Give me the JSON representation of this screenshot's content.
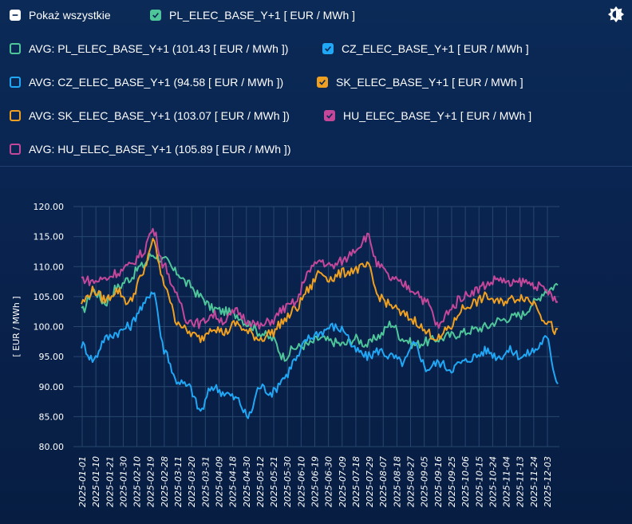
{
  "legend": {
    "show_all": "Pokaż wszystkie",
    "items": [
      {
        "label": "PL_ELEC_BASE_Y+1 [ EUR / MWh ]",
        "color": "#4fc69a",
        "checked": true
      },
      {
        "label": "AVG: PL_ELEC_BASE_Y+1 (101.43 [ EUR / MWh ])",
        "color": "#4fc69a",
        "checked": false
      },
      {
        "label": "CZ_ELEC_BASE_Y+1 [ EUR / MWh ]",
        "color": "#20a7f5",
        "checked": true
      },
      {
        "label": "AVG: CZ_ELEC_BASE_Y+1 (94.58 [ EUR / MWh ])",
        "color": "#20a7f5",
        "checked": false
      },
      {
        "label": "SK_ELEC_BASE_Y+1 [ EUR / MWh ]",
        "color": "#f0a020",
        "checked": true
      },
      {
        "label": "AVG: SK_ELEC_BASE_Y+1 (103.07 [ EUR / MWh ])",
        "color": "#f0a020",
        "checked": false
      },
      {
        "label": "HU_ELEC_BASE_Y+1 [ EUR / MWh ]",
        "color": "#c5479a",
        "checked": true
      },
      {
        "label": "AVG: HU_ELEC_BASE_Y+1 (105.89 [ EUR / MWh ])",
        "color": "#c5479a",
        "checked": false
      }
    ],
    "theme_icon": "brightness-icon"
  },
  "chart_data": {
    "type": "line",
    "ylabel": "[ EUR / MWh ]",
    "ylim": [
      80,
      120
    ],
    "y_ticks": [
      "80.00",
      "85.00",
      "90.00",
      "95.00",
      "100.00",
      "105.00",
      "110.00",
      "115.00",
      "120.00"
    ],
    "x_ticks": [
      "2025-01-01",
      "2025-01-10",
      "2025-01-21",
      "2025-01-30",
      "2025-02-10",
      "2025-02-19",
      "2025-02-28",
      "2025-03-11",
      "2025-03-20",
      "2025-03-31",
      "2025-04-09",
      "2025-04-18",
      "2025-04-30",
      "2025-05-12",
      "2025-05-21",
      "2025-05-30",
      "2025-06-10",
      "2025-06-19",
      "2025-06-30",
      "2025-07-09",
      "2025-07-18",
      "2025-07-29",
      "2025-08-07",
      "2025-08-18",
      "2025-08-27",
      "2025-09-05",
      "2025-09-16",
      "2025-09-25",
      "2025-10-06",
      "2025-10-15",
      "2025-10-24",
      "2025-11-04",
      "2025-11-13",
      "2025-11-24",
      "2025-12-03"
    ],
    "grid": true,
    "series": [
      {
        "name": "PL_ELEC_BASE_Y+1 [ EUR / MWh ]",
        "color": "#4fc69a",
        "values": [
          102.5,
          106,
          104,
          106.5,
          108,
          110,
          112,
          111,
          109,
          107,
          105,
          103,
          102.5,
          102,
          100.5,
          99,
          98,
          95,
          96.5,
          97,
          98,
          97.5,
          97,
          98,
          97,
          98.5,
          100.5,
          98,
          97,
          97.5,
          98,
          98.5,
          99,
          99.5,
          100,
          101,
          101.5,
          102,
          104,
          106,
          107
        ]
      },
      {
        "name": "CZ_ELEC_BASE_Y+1 [ EUR / MWh ]",
        "color": "#20a7f5",
        "values": [
          97,
          94.5,
          98,
          99,
          100,
          103,
          106,
          96,
          91,
          90,
          86,
          90,
          89,
          88,
          85,
          90,
          89,
          91.5,
          94.5,
          98,
          99,
          100,
          99.5,
          96,
          95,
          96,
          95,
          94,
          97,
          93,
          94,
          93,
          94,
          95,
          96,
          95,
          96,
          95,
          96,
          98,
          91
        ]
      },
      {
        "name": "SK_ELEC_BASE_Y+1 [ EUR / MWh ]",
        "color": "#f0a020",
        "values": [
          104,
          106,
          104.5,
          106,
          104,
          108,
          114,
          107,
          101,
          99,
          98,
          100,
          99,
          100.5,
          99,
          98,
          99,
          101,
          103,
          106,
          109,
          108,
          109,
          109.5,
          110,
          105,
          103.5,
          102,
          101,
          99,
          98,
          100,
          103,
          104,
          105,
          104,
          104.5,
          105,
          104,
          101,
          99
        ]
      },
      {
        "name": "HU_ELEC_BASE_Y+1 [ EUR / MWh ]",
        "color": "#c5479a",
        "values": [
          108,
          107.5,
          108,
          109,
          110,
          112,
          116,
          110,
          105,
          101,
          100.5,
          102,
          101,
          102.5,
          101,
          100,
          101,
          103,
          104,
          109,
          111,
          110,
          111,
          113,
          115,
          110,
          108,
          107,
          106,
          104,
          100,
          103,
          105,
          106,
          107,
          108,
          107,
          107.5,
          107,
          106,
          104
        ]
      }
    ]
  }
}
